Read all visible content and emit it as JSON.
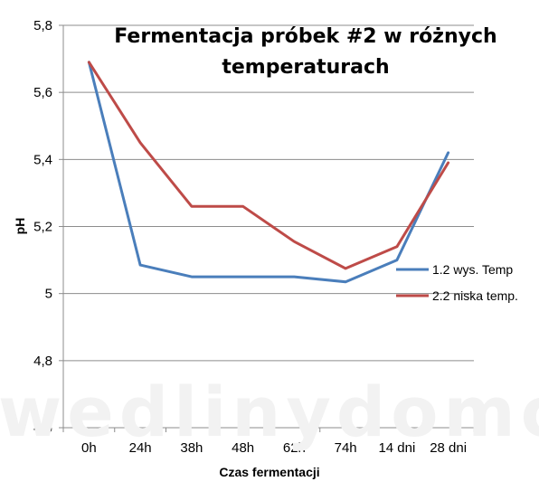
{
  "chart_data": {
    "type": "line",
    "title_lines": [
      "Fermentacja próbek #2 w różnych",
      "temperaturach"
    ],
    "xlabel": "Czas fermentacji",
    "ylabel": "pH",
    "categories": [
      "0h",
      "24h",
      "38h",
      "48h",
      "62h",
      "74h",
      "14 dni",
      "28 dni"
    ],
    "ylim": [
      4.6,
      5.8
    ],
    "yticks": [
      4.6,
      4.8,
      5.0,
      5.2,
      5.4,
      5.6,
      5.8
    ],
    "ytick_labels": [
      "4,6",
      "4,8",
      "5",
      "5,2",
      "5,4",
      "5,6",
      "5,8"
    ],
    "grid": true,
    "legend_position": "right",
    "series": [
      {
        "name": "1.2 wys. Temp",
        "color": "#4a7ebb",
        "values": [
          5.69,
          5.085,
          5.05,
          5.05,
          5.05,
          5.035,
          5.1,
          5.42
        ]
      },
      {
        "name": "2.2 niska temp.",
        "color": "#be4b48",
        "values": [
          5.69,
          5.45,
          5.26,
          5.26,
          5.155,
          5.075,
          5.14,
          5.39
        ]
      }
    ],
    "watermark": "wedlinydomowe.pl"
  }
}
